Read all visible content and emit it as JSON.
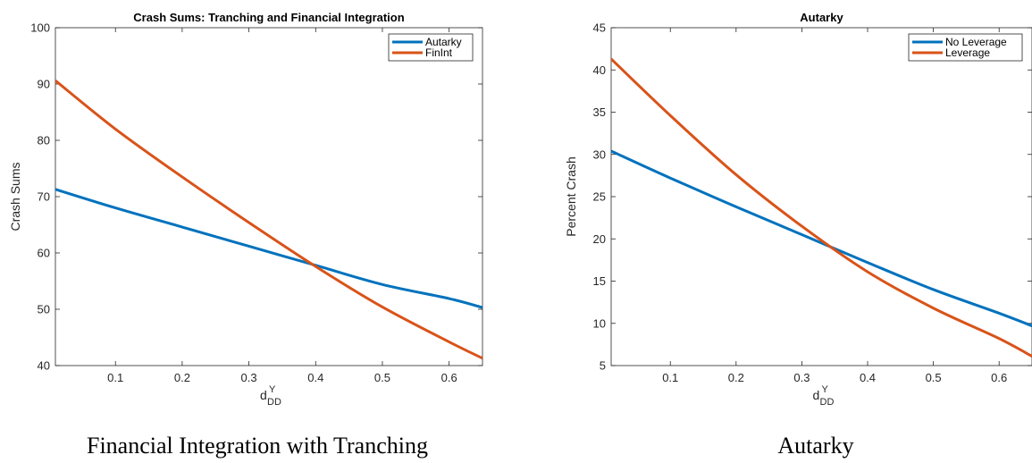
{
  "chart_data": [
    {
      "type": "line",
      "title": "Crash Sums: Tranching and Financial Integration",
      "xlabel": "d",
      "xlabel_sub": "DD",
      "xlabel_sup": "Y",
      "ylabel": "Crash Sums",
      "xlim": [
        0.01,
        0.65
      ],
      "ylim": [
        40,
        100
      ],
      "xticks": [
        0.1,
        0.2,
        0.3,
        0.4,
        0.5,
        0.6
      ],
      "xtick_labels": [
        "0.1",
        "0.2",
        "0.3",
        "0.4",
        "0.5",
        "0.6"
      ],
      "yticks": [
        40,
        50,
        60,
        70,
        80,
        90,
        100
      ],
      "ytick_labels": [
        "40",
        "50",
        "60",
        "70",
        "80",
        "90",
        "100"
      ],
      "legend_position": "top-right",
      "series": [
        {
          "name": "Autarky",
          "color": "#0072BD",
          "x": [
            0.01,
            0.1,
            0.2,
            0.3,
            0.4,
            0.5,
            0.6,
            0.65
          ],
          "y": [
            71.3,
            68.0,
            64.6,
            61.2,
            57.8,
            54.4,
            51.9,
            50.3
          ]
        },
        {
          "name": "FinInt",
          "color": "#D95319",
          "x": [
            0.01,
            0.1,
            0.2,
            0.3,
            0.4,
            0.5,
            0.6,
            0.65
          ],
          "y": [
            90.6,
            82.0,
            73.5,
            65.4,
            57.6,
            50.4,
            44.2,
            41.3
          ]
        }
      ]
    },
    {
      "type": "line",
      "title": "Autarky",
      "xlabel": "d",
      "xlabel_sub": "DD",
      "xlabel_sup": "Y",
      "ylabel": "Percent Crash",
      "xlim": [
        0.01,
        0.65
      ],
      "ylim": [
        5,
        45
      ],
      "xticks": [
        0.1,
        0.2,
        0.3,
        0.4,
        0.5,
        0.6
      ],
      "xtick_labels": [
        "0.1",
        "0.2",
        "0.3",
        "0.4",
        "0.5",
        "0.6"
      ],
      "yticks": [
        5,
        10,
        15,
        20,
        25,
        30,
        35,
        40,
        45
      ],
      "ytick_labels": [
        "5",
        "10",
        "15",
        "20",
        "25",
        "30",
        "35",
        "40",
        "45"
      ],
      "legend_position": "top-right",
      "series": [
        {
          "name": "No Leverage",
          "color": "#0072BD",
          "x": [
            0.01,
            0.1,
            0.2,
            0.3,
            0.4,
            0.5,
            0.6,
            0.65
          ],
          "y": [
            30.4,
            27.2,
            23.8,
            20.5,
            17.2,
            14.0,
            11.2,
            9.7
          ]
        },
        {
          "name": "Leverage",
          "color": "#D95319",
          "x": [
            0.01,
            0.1,
            0.2,
            0.3,
            0.4,
            0.5,
            0.6,
            0.65
          ],
          "y": [
            41.3,
            34.6,
            27.6,
            21.5,
            16.1,
            11.8,
            8.2,
            6.1
          ]
        }
      ]
    }
  ],
  "captions": {
    "left": "Financial Integration with Tranching",
    "right": "Autarky"
  }
}
